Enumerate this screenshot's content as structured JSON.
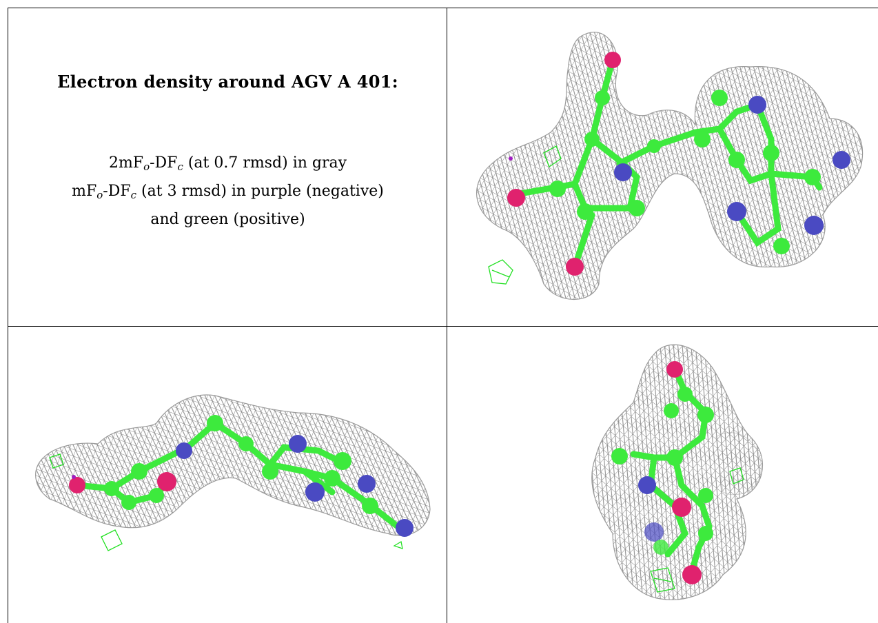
{
  "title": "Electron density around AGV A 401:",
  "legend": {
    "line1_a": "2mF",
    "line1_sub1": "o",
    "line1_b": "-DF",
    "line1_sub2": "c",
    "line1_c": " (at 0.7 rmsd) in gray",
    "line2_a": "mF",
    "line2_sub1": "o",
    "line2_b": "-DF",
    "line2_sub2": "c",
    "line2_c": " (at 3 rmsd) in purple (negative)",
    "line3": "and green (positive)"
  },
  "colors": {
    "mesh": "#8f8f8f",
    "carbon": "#3dea3d",
    "nitrogen": "#4a4ac2",
    "oxygen": "#e0226e",
    "positive_density": "#22e022",
    "negative_density": "#a020c0"
  },
  "views": [
    "ligand-view-1",
    "ligand-view-2",
    "ligand-view-3"
  ]
}
